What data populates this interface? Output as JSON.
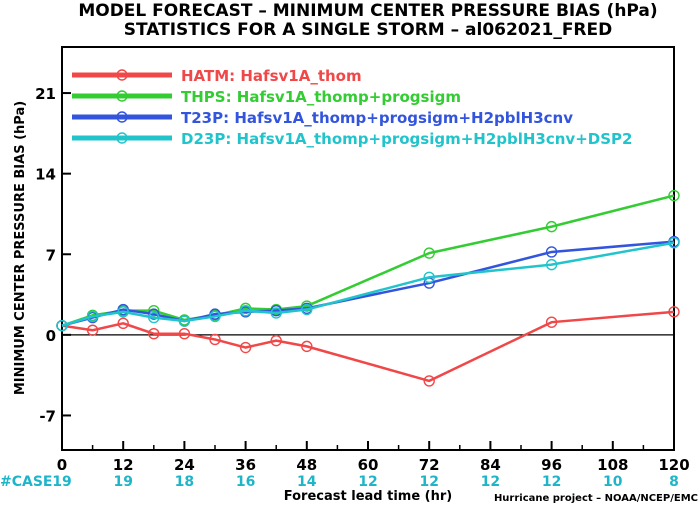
{
  "chart_data": {
    "type": "line",
    "title": "MODEL FORECAST – MINIMUM CENTER PRESSURE BIAS (hPa)",
    "subtitle": "STATISTICS FOR A SINGLE STORM – al062021_FRED",
    "xlabel": "Forecast lead time (hr)",
    "ylabel": "MINIMUM CENTER PRESSURE BIAS (hPa)",
    "xlim": [
      0,
      120
    ],
    "ylim": [
      -10,
      25
    ],
    "x_ticks": [
      0,
      12,
      24,
      36,
      48,
      60,
      72,
      84,
      96,
      108,
      120
    ],
    "y_ticks": [
      -7,
      0,
      7,
      14,
      21
    ],
    "zero_line": true,
    "legend_position": "top-left",
    "case_label": "#CASE",
    "cases": [
      {
        "x": 0,
        "n": "19"
      },
      {
        "x": 12,
        "n": "19"
      },
      {
        "x": 24,
        "n": "18"
      },
      {
        "x": 36,
        "n": "16"
      },
      {
        "x": 48,
        "n": "14"
      },
      {
        "x": 60,
        "n": "12"
      },
      {
        "x": 72,
        "n": "12"
      },
      {
        "x": 84,
        "n": "12"
      },
      {
        "x": 96,
        "n": "12"
      },
      {
        "x": 108,
        "n": "10"
      },
      {
        "x": 120,
        "n": "8"
      }
    ],
    "credit": "Hurricane project – NOAA/NCEP/EMC",
    "series": [
      {
        "name": "HATM:  Hafsv1A_thom",
        "color": "#f04848",
        "points": [
          [
            0,
            0.8
          ],
          [
            6,
            0.4
          ],
          [
            12,
            1.0
          ],
          [
            18,
            0.1
          ],
          [
            24,
            0.1
          ],
          [
            30,
            -0.4
          ],
          [
            36,
            -1.1
          ],
          [
            42,
            -0.5
          ],
          [
            48,
            -1.0
          ],
          [
            72,
            -4.0
          ],
          [
            96,
            1.1
          ],
          [
            120,
            2.0
          ]
        ]
      },
      {
        "name": "THPS:  Hafsv1A_thomp+progsigm",
        "color": "#33cc33",
        "points": [
          [
            0,
            0.8
          ],
          [
            6,
            1.7
          ],
          [
            12,
            2.1
          ],
          [
            18,
            2.1
          ],
          [
            24,
            1.3
          ],
          [
            30,
            1.7
          ],
          [
            36,
            2.3
          ],
          [
            42,
            2.2
          ],
          [
            48,
            2.5
          ],
          [
            72,
            7.1
          ],
          [
            96,
            9.4
          ],
          [
            120,
            12.1
          ]
        ]
      },
      {
        "name": "T23P:  Hafsv1A_thomp+progsigm+H2pblH3cnv",
        "color": "#3355dd",
        "points": [
          [
            0,
            0.8
          ],
          [
            6,
            1.5
          ],
          [
            12,
            2.2
          ],
          [
            18,
            1.8
          ],
          [
            24,
            1.2
          ],
          [
            30,
            1.8
          ],
          [
            36,
            2.0
          ],
          [
            42,
            2.1
          ],
          [
            48,
            2.3
          ],
          [
            72,
            4.5
          ],
          [
            96,
            7.2
          ],
          [
            120,
            8.1
          ]
        ]
      },
      {
        "name": "D23P:  Hafsv1A_thomp+progsigm+H2pblH3cnv+DSP2",
        "color": "#22c4cc",
        "points": [
          [
            0,
            0.8
          ],
          [
            6,
            1.6
          ],
          [
            12,
            2.0
          ],
          [
            18,
            1.5
          ],
          [
            24,
            1.2
          ],
          [
            30,
            1.6
          ],
          [
            36,
            2.1
          ],
          [
            42,
            1.9
          ],
          [
            48,
            2.2
          ],
          [
            72,
            5.0
          ],
          [
            96,
            6.1
          ],
          [
            120,
            8.0
          ]
        ]
      }
    ]
  }
}
